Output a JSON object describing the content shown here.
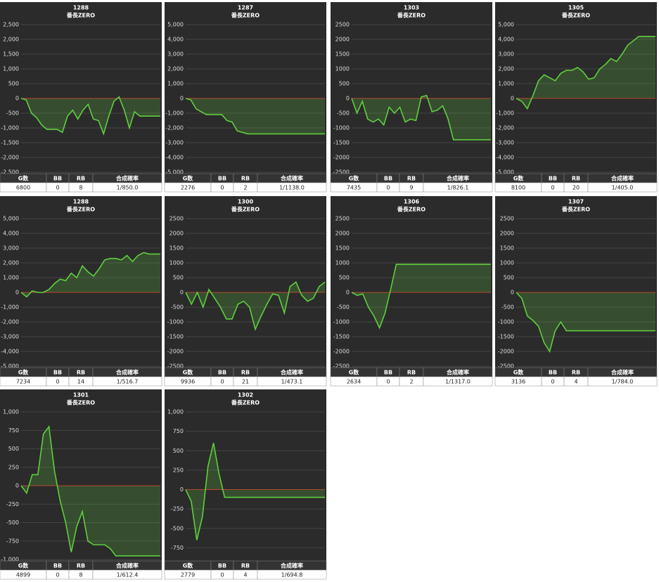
{
  "chart_data": [
    {
      "type": "line",
      "title": "1288",
      "subtitle": "番長ZERO",
      "ylim": [
        -2500,
        2500
      ],
      "yticks": [
        {
          "value": 2500,
          "label": "2,500"
        },
        {
          "value": 2000,
          "label": "2,000"
        },
        {
          "value": 1500,
          "label": "1,500"
        },
        {
          "value": 1000,
          "label": "1,000"
        },
        500,
        0,
        -500,
        {
          "value": -1000,
          "label": "-1,000"
        },
        {
          "value": -1500,
          "label": "-1,500"
        },
        {
          "value": -2000,
          "label": "-2,000"
        },
        {
          "value": -2500,
          "label": "-2,500"
        }
      ],
      "values": [
        0,
        -50,
        -500,
        -650,
        -900,
        -1050,
        -1050,
        -1050,
        -1150,
        -600,
        -400,
        -700,
        -400,
        -200,
        -700,
        -750,
        -1200,
        -600,
        -100,
        50,
        -400,
        -1000,
        -450,
        -600,
        -600,
        -600,
        -600,
        -600
      ],
      "color": "#5fce3f",
      "stats": {
        "headers": [
          "G数",
          "BB",
          "RB",
          "合成確率"
        ],
        "values": [
          6800,
          0,
          8,
          "1/850.0"
        ]
      }
    },
    {
      "type": "line",
      "title": "1287",
      "subtitle": "番長ZERO",
      "ylim": [
        -5000,
        5000
      ],
      "yticks": [
        {
          "value": 5000,
          "label": "5,000"
        },
        {
          "value": 4000,
          "label": "4,000"
        },
        {
          "value": 3000,
          "label": "3,000"
        },
        {
          "value": 2000,
          "label": "2,000"
        },
        {
          "value": 1000,
          "label": "1,000"
        },
        0,
        {
          "value": -1000,
          "label": "-1,000"
        },
        {
          "value": -2000,
          "label": "-2,000"
        },
        {
          "value": -3000,
          "label": "-3,000"
        },
        {
          "value": -4000,
          "label": "-4,000"
        },
        {
          "value": -5000,
          "label": "-5,000"
        }
      ],
      "values": [
        0,
        -100,
        -700,
        -900,
        -1100,
        -1100,
        -1100,
        -1100,
        -1500,
        -1600,
        -2200,
        -2300,
        -2400,
        -2400,
        -2400,
        -2400,
        -2400,
        -2400,
        -2400,
        -2400,
        -2400,
        -2400,
        -2400,
        -2400,
        -2400,
        -2400,
        -2400,
        -2400
      ],
      "color": "#5fce3f",
      "stats": {
        "headers": [
          "G数",
          "BB",
          "RB",
          "合成確率"
        ],
        "values": [
          2276,
          0,
          2,
          "1/1138.0"
        ]
      }
    },
    {
      "type": "line",
      "title": "1303",
      "subtitle": "番長ZERO",
      "ylim": [
        -2500,
        2500
      ],
      "yticks": [
        2500,
        2000,
        1500,
        1000,
        500,
        0,
        -500,
        -1000,
        -1500,
        -2000,
        -2500
      ],
      "values": [
        0,
        -500,
        -100,
        -700,
        -800,
        -700,
        -900,
        -300,
        -500,
        -300,
        -800,
        -700,
        -750,
        50,
        100,
        -450,
        -400,
        -250,
        -700,
        -1400,
        -1400,
        -1400,
        -1400,
        -1400,
        -1400,
        -1400,
        -1400
      ],
      "color": "#5fce3f",
      "stats": {
        "headers": [
          "G数",
          "BB",
          "RB",
          "合成確率"
        ],
        "values": [
          7435,
          0,
          9,
          "1/826.1"
        ]
      }
    },
    {
      "type": "line",
      "title": "1305",
      "subtitle": "番長ZERO",
      "ylim": [
        -5000,
        5000
      ],
      "yticks": [
        {
          "value": 5000,
          "label": "5,000"
        },
        {
          "value": 4000,
          "label": "4,000"
        },
        {
          "value": 3000,
          "label": "3,000"
        },
        {
          "value": 2000,
          "label": "2,000"
        },
        {
          "value": 1000,
          "label": "1,000"
        },
        0,
        {
          "value": -1000,
          "label": "-1,000"
        },
        {
          "value": -2000,
          "label": "-2,000"
        },
        {
          "value": -3000,
          "label": "-3,000"
        },
        {
          "value": -4000,
          "label": "-4,000"
        },
        {
          "value": -5000,
          "label": "-5,000"
        }
      ],
      "values": [
        0,
        -200,
        -700,
        200,
        1200,
        1600,
        1400,
        1200,
        1700,
        1900,
        1900,
        2100,
        1800,
        1300,
        1400,
        2000,
        2300,
        2700,
        2500,
        3000,
        3600,
        3900,
        4200,
        4200,
        4200,
        4200
      ],
      "color": "#5fce3f",
      "stats": {
        "headers": [
          "G数",
          "BB",
          "RB",
          "合成確率"
        ],
        "values": [
          8100,
          0,
          20,
          "1/405.0"
        ]
      }
    },
    {
      "type": "line",
      "title": "1288",
      "subtitle": "番長ZERO",
      "ylim": [
        -5000,
        5000
      ],
      "yticks": [
        {
          "value": 5000,
          "label": "5,000"
        },
        {
          "value": 4000,
          "label": "4,000"
        },
        {
          "value": 3000,
          "label": "3,000"
        },
        {
          "value": 2000,
          "label": "2,000"
        },
        {
          "value": 1000,
          "label": "1,000"
        },
        0,
        {
          "value": -1000,
          "label": "-1,000"
        },
        {
          "value": -2000,
          "label": "-2,000"
        },
        {
          "value": -3000,
          "label": "-3,000"
        },
        {
          "value": -4000,
          "label": "-4,000"
        },
        {
          "value": -5000,
          "label": "-5,000"
        }
      ],
      "values": [
        0,
        -300,
        100,
        0,
        0,
        200,
        600,
        900,
        800,
        1300,
        1000,
        1800,
        1400,
        1100,
        1600,
        2200,
        2300,
        2300,
        2200,
        2500,
        2100,
        2500,
        2700,
        2600,
        2600,
        2600
      ],
      "color": "#5fce3f",
      "stats": {
        "headers": [
          "G数",
          "BB",
          "RB",
          "合成確率"
        ],
        "values": [
          7234,
          0,
          14,
          "1/516.7"
        ]
      }
    },
    {
      "type": "line",
      "title": "1300",
      "subtitle": "番長ZERO",
      "ylim": [
        -2500,
        2500
      ],
      "yticks": [
        2500,
        2000,
        1500,
        1000,
        500,
        0,
        -500,
        -1000,
        -1500,
        -2000,
        -2500
      ],
      "values": [
        0,
        -400,
        0,
        -500,
        100,
        -200,
        -500,
        -900,
        -900,
        -400,
        -300,
        -500,
        -1250,
        -800,
        -400,
        -50,
        -100,
        -700,
        200,
        350,
        -100,
        -300,
        -200,
        200,
        350
      ],
      "color": "#5fce3f",
      "stats": {
        "headers": [
          "G数",
          "BB",
          "RB",
          "合成確率"
        ],
        "values": [
          9936,
          0,
          21,
          "1/473.1"
        ]
      }
    },
    {
      "type": "line",
      "title": "1306",
      "subtitle": "番長ZERO",
      "ylim": [
        -2500,
        2500
      ],
      "yticks": [
        2500,
        2000,
        1500,
        1000,
        500,
        0,
        -500,
        -1000,
        -1500,
        -2000,
        -2500
      ],
      "values": [
        0,
        -100,
        -50,
        -500,
        -800,
        -1200,
        -700,
        100,
        950,
        950,
        950,
        950,
        950,
        950,
        950,
        950,
        950,
        950,
        950,
        950,
        950,
        950,
        950,
        950,
        950,
        950
      ],
      "color": "#5fce3f",
      "stats": {
        "headers": [
          "G数",
          "BB",
          "RB",
          "合成確率"
        ],
        "values": [
          2634,
          0,
          2,
          "1/1317.0"
        ]
      }
    },
    {
      "type": "line",
      "title": "1307",
      "subtitle": "番長ZERO",
      "ylim": [
        -2500,
        2500
      ],
      "yticks": [
        2500,
        2000,
        1500,
        1000,
        500,
        0,
        -500,
        -1000,
        -1500,
        -2000,
        -2500
      ],
      "values": [
        0,
        -200,
        -800,
        -950,
        -1150,
        -1700,
        -2000,
        -1300,
        -1000,
        -1300,
        -1300,
        -1300,
        -1300,
        -1300,
        -1300,
        -1300,
        -1300,
        -1300,
        -1300,
        -1300,
        -1300,
        -1300,
        -1300,
        -1300,
        -1300,
        -1300
      ],
      "color": "#5fce3f",
      "stats": {
        "headers": [
          "G数",
          "BB",
          "RB",
          "合成確率"
        ],
        "values": [
          3136,
          0,
          4,
          "1/784.0"
        ]
      }
    },
    {
      "type": "line",
      "title": "1301",
      "subtitle": "番長ZERO",
      "ylim": [
        -1000,
        1000
      ],
      "yticks": [
        {
          "value": 1000,
          "label": "1,000"
        },
        750,
        500,
        250,
        0,
        -250,
        -500,
        -750,
        {
          "value": -1000,
          "label": "-1,000"
        }
      ],
      "values": [
        0,
        -100,
        150,
        150,
        700,
        800,
        200,
        -200,
        -500,
        -900,
        -550,
        -350,
        -750,
        -800,
        -800,
        -800,
        -850,
        -950,
        -950,
        -950,
        -950,
        -950,
        -950,
        -950,
        -950,
        -950
      ],
      "color": "#5fce3f",
      "stats": {
        "headers": [
          "G数",
          "BB",
          "RB",
          "合成確率"
        ],
        "values": [
          4899,
          0,
          8,
          "1/612.4"
        ]
      }
    },
    {
      "type": "line",
      "title": "1302",
      "subtitle": "番長ZERO",
      "ylim": [
        -900,
        1000
      ],
      "yticks": [
        {
          "value": 1000,
          "label": "1,000"
        },
        750,
        500,
        250,
        0,
        -250,
        -500,
        -750
      ],
      "values": [
        0,
        -150,
        -650,
        -350,
        300,
        600,
        200,
        -100,
        -100,
        -100,
        -100,
        -100,
        -100,
        -100,
        -100,
        -100,
        -100,
        -100,
        -100,
        -100,
        -100,
        -100,
        -100,
        -100,
        -100,
        -100
      ],
      "color": "#5fce3f",
      "stats": {
        "headers": [
          "G数",
          "BB",
          "RB",
          "合成確率"
        ],
        "values": [
          2779,
          0,
          4,
          "1/694.8"
        ]
      }
    }
  ]
}
